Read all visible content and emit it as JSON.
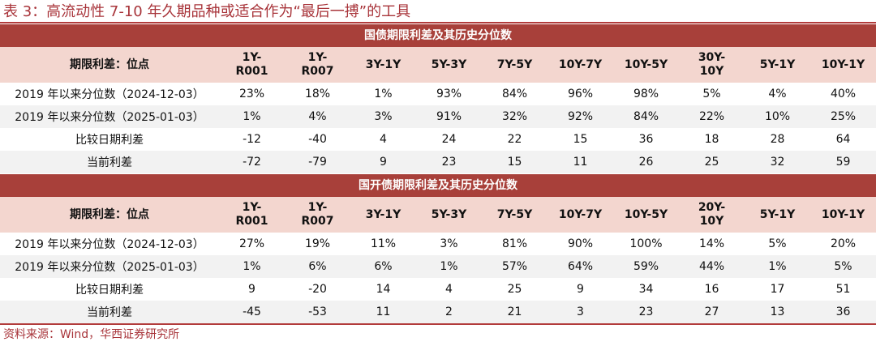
{
  "title": "表 3：高流动性 7-10 年久期品种或适合作为“最后一搏”的工具",
  "source": "资料来源：Wind，华西证券研究所",
  "tables": [
    {
      "section_title": "国债期限利差及其历史分位数",
      "header_label": "期限利差：位点",
      "columns": [
        [
          "1Y-",
          "R001"
        ],
        [
          "1Y-",
          "R007"
        ],
        [
          "3Y-1Y",
          ""
        ],
        [
          "5Y-3Y",
          ""
        ],
        [
          "7Y-5Y",
          ""
        ],
        [
          "10Y-7Y",
          ""
        ],
        [
          "10Y-5Y",
          ""
        ],
        [
          "30Y-",
          "10Y"
        ],
        [
          "5Y-1Y",
          ""
        ],
        [
          "10Y-1Y",
          ""
        ]
      ],
      "rows": [
        {
          "label": "2019 年以来分位数（2024-12-03）",
          "values": [
            "23%",
            "18%",
            "1%",
            "93%",
            "84%",
            "96%",
            "98%",
            "5%",
            "4%",
            "40%"
          ]
        },
        {
          "label": "2019 年以来分位数（2025-01-03）",
          "values": [
            "1%",
            "4%",
            "3%",
            "91%",
            "32%",
            "92%",
            "84%",
            "22%",
            "10%",
            "25%"
          ]
        },
        {
          "label": "比较日期利差",
          "values": [
            "-12",
            "-40",
            "4",
            "24",
            "22",
            "15",
            "36",
            "18",
            "28",
            "64"
          ]
        },
        {
          "label": "当前利差",
          "values": [
            "-72",
            "-79",
            "9",
            "23",
            "15",
            "11",
            "26",
            "25",
            "32",
            "59"
          ]
        }
      ]
    },
    {
      "section_title": "国开债期限利差及其历史分位数",
      "header_label": "期限利差：位点",
      "columns": [
        [
          "1Y-",
          "R001"
        ],
        [
          "1Y-",
          "R007"
        ],
        [
          "3Y-1Y",
          ""
        ],
        [
          "5Y-3Y",
          ""
        ],
        [
          "7Y-5Y",
          ""
        ],
        [
          "10Y-7Y",
          ""
        ],
        [
          "10Y-5Y",
          ""
        ],
        [
          "20Y-",
          "10Y"
        ],
        [
          "5Y-1Y",
          ""
        ],
        [
          "10Y-1Y",
          ""
        ]
      ],
      "rows": [
        {
          "label": "2019 年以来分位数（2024-12-03）",
          "values": [
            "27%",
            "19%",
            "11%",
            "3%",
            "81%",
            "90%",
            "100%",
            "14%",
            "5%",
            "20%"
          ]
        },
        {
          "label": "2019 年以来分位数（2025-01-03）",
          "values": [
            "1%",
            "6%",
            "6%",
            "1%",
            "57%",
            "64%",
            "59%",
            "44%",
            "1%",
            "5%"
          ]
        },
        {
          "label": "比较日期利差",
          "values": [
            "9",
            "-20",
            "14",
            "4",
            "25",
            "9",
            "34",
            "16",
            "17",
            "51"
          ]
        },
        {
          "label": "当前利差",
          "values": [
            "-45",
            "-53",
            "11",
            "2",
            "21",
            "3",
            "23",
            "27",
            "13",
            "36"
          ]
        }
      ]
    }
  ]
}
